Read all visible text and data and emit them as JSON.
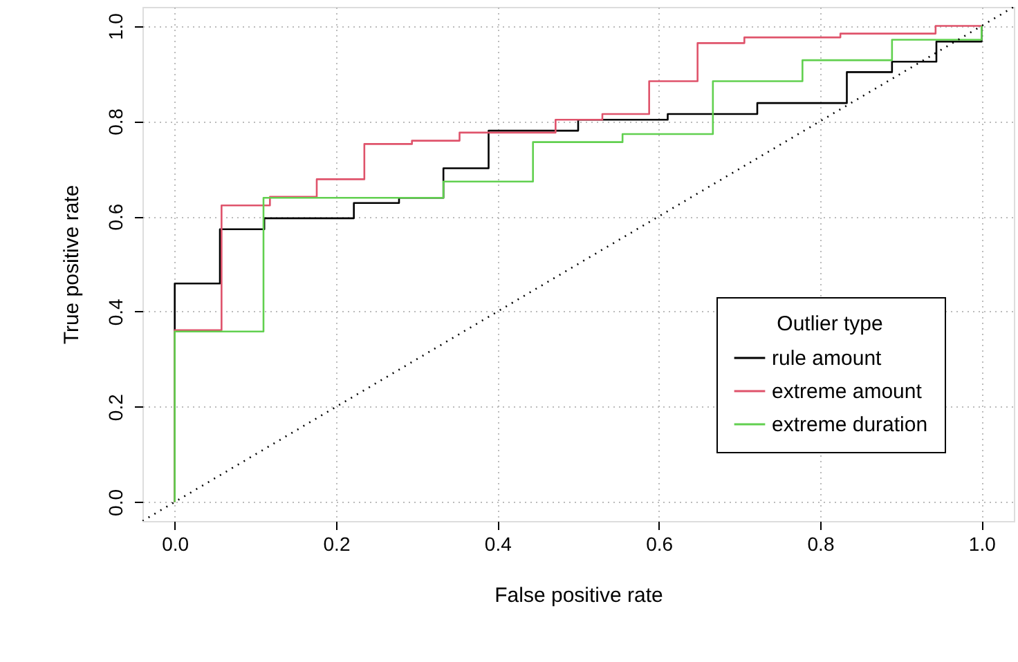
{
  "chart_data": {
    "type": "step",
    "xlabel": "False positive rate",
    "ylabel": "True positive rate",
    "legend_title": "Outlier type",
    "xlim": [
      -0.04,
      1.04
    ],
    "ylim": [
      -0.04,
      1.04
    ],
    "xticks": [
      {
        "value": 0,
        "label": "0.0"
      },
      {
        "value": 0.2,
        "label": "0.2"
      },
      {
        "value": 0.4,
        "label": "0.4"
      },
      {
        "value": 0.6,
        "label": "0.6"
      },
      {
        "value": 0.8,
        "label": "0.8"
      },
      {
        "value": 1,
        "label": "1.0"
      }
    ],
    "yticks": [
      {
        "value": 0,
        "label": "0.0"
      },
      {
        "value": 0.2,
        "label": "0.2"
      },
      {
        "value": 0.4,
        "label": "0.4"
      },
      {
        "value": 0.6,
        "label": "0.6"
      },
      {
        "value": 0.8,
        "label": "0.8"
      },
      {
        "value": 1,
        "label": "1.0"
      }
    ],
    "grid": true,
    "legend": "bottom right",
    "series": [
      {
        "name": "rule amount",
        "color": "#000000",
        "x": [
          0,
          0,
          0.056,
          0.111,
          0.222,
          0.278,
          0.333,
          0.389,
          0.5,
          0.611,
          0.722,
          0.833,
          0.889,
          0.944,
          1,
          1
        ],
        "values": [
          0,
          0.459,
          0.573,
          0.596,
          0.628,
          0.639,
          0.701,
          0.78,
          0.803,
          0.815,
          0.838,
          0.903,
          0.925,
          0.967,
          0.967,
          1
        ]
      },
      {
        "name": "extreme amount",
        "color": "#df536b",
        "x": [
          0,
          0,
          0.058,
          0.118,
          0.176,
          0.235,
          0.294,
          0.353,
          0.472,
          0.53,
          0.588,
          0.648,
          0.706,
          0.825,
          0.943,
          1
        ],
        "values": [
          0,
          0.361,
          0.623,
          0.641,
          0.678,
          0.752,
          0.759,
          0.776,
          0.803,
          0.815,
          0.884,
          0.964,
          0.976,
          0.984,
          1,
          1
        ]
      },
      {
        "name": "extreme duration",
        "color": "#61d04f",
        "x": [
          0,
          0,
          0.11,
          0.333,
          0.444,
          0.555,
          0.667,
          0.778,
          0.889,
          1,
          1
        ],
        "values": [
          0,
          0.358,
          0.639,
          0.673,
          0.756,
          0.773,
          0.884,
          0.928,
          0.971,
          0.971,
          1
        ]
      },
      {
        "type": "line",
        "color": "#000000",
        "line_style": "dotted",
        "x": [
          -0.04,
          1.04
        ],
        "values": [
          -0.04,
          1.04
        ]
      }
    ]
  }
}
